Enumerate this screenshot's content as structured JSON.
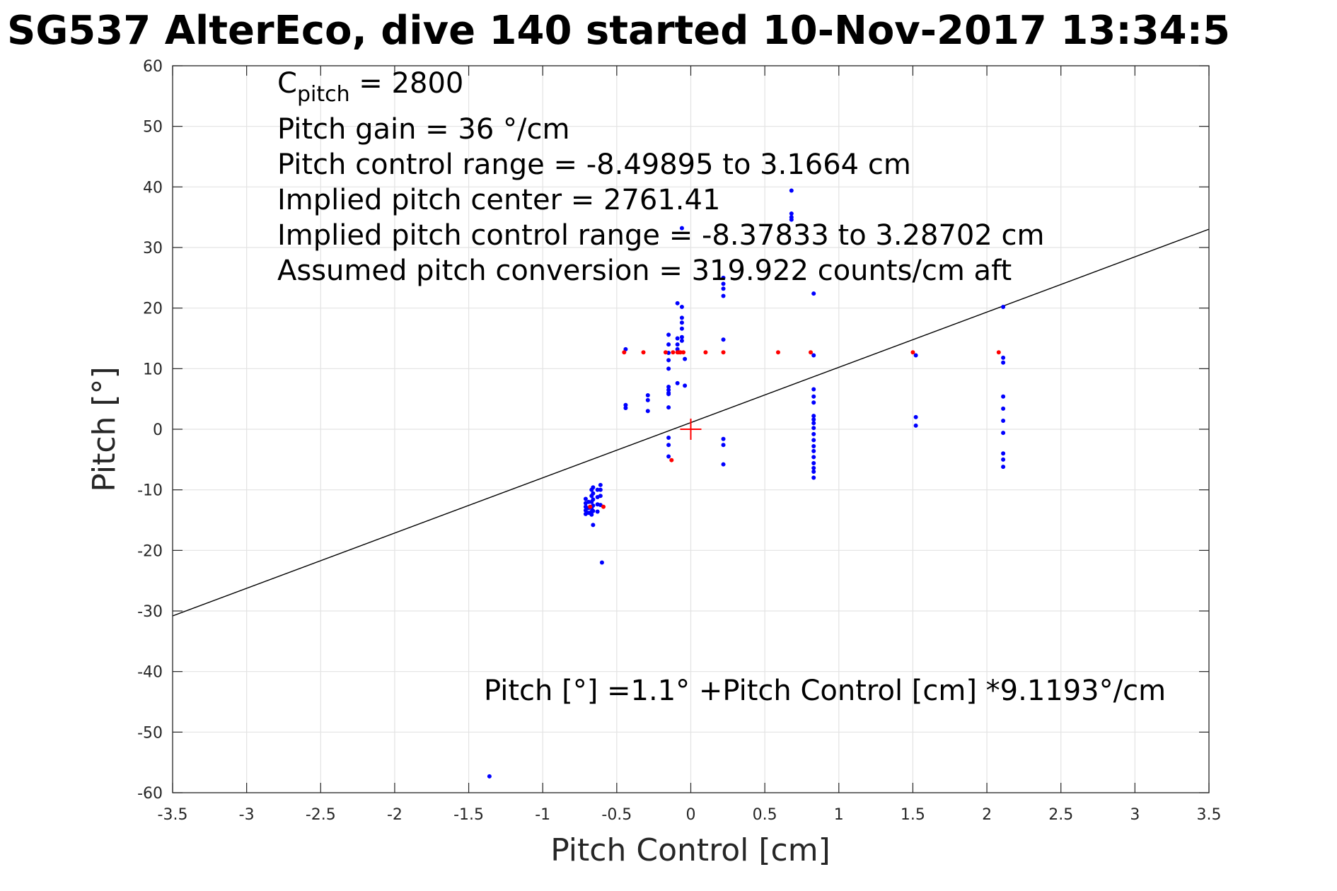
{
  "chart_data": {
    "type": "scatter",
    "title": "SG537 AlterEco, dive 140 started 10-Nov-2017 13:34:5",
    "xlabel": "Pitch Control [cm]",
    "ylabel": "Pitch [°]",
    "xlim": [
      -3.5,
      3.5
    ],
    "ylim": [
      -60,
      60
    ],
    "xticks": [
      -3.5,
      -3,
      -2.5,
      -2,
      -1.5,
      -1,
      -0.5,
      0,
      0.5,
      1,
      1.5,
      2,
      2.5,
      3,
      3.5
    ],
    "xtick_labels": [
      "-3.5",
      "-3",
      "-2.5",
      "-2",
      "-1.5",
      "-1",
      "-0.5",
      "0",
      "0.5",
      "1",
      "1.5",
      "2",
      "2.5",
      "3",
      "3.5"
    ],
    "yticks": [
      -60,
      -50,
      -40,
      -30,
      -20,
      -10,
      0,
      10,
      20,
      30,
      40,
      50,
      60
    ],
    "ytick_labels": [
      "-60",
      "-50",
      "-40",
      "-30",
      "-20",
      "-10",
      "0",
      "10",
      "20",
      "30",
      "40",
      "50",
      "60"
    ],
    "grid": true,
    "annotations": {
      "c_pitch_main": "C",
      "c_pitch_sub": "pitch",
      "c_pitch_value": " = 2800",
      "pitch_gain": "Pitch gain = 36 °/cm",
      "pitch_control_range": "Pitch control range = -8.49895 to 3.1664 cm",
      "implied_center": "Implied pitch center = 2761.41",
      "implied_range": "Implied pitch control range = -8.37833 to 3.28702 cm",
      "assumed_conversion": "Assumed pitch conversion = 319.922 counts/cm aft",
      "fit_equation": "Pitch [°] =1.1° +Pitch Control [cm] *9.1193°/cm"
    },
    "fit_line": {
      "intercept": 1.1,
      "slope": 9.1193,
      "color": "#000000"
    },
    "center_marker": {
      "x": 0,
      "y": 0,
      "color": "#ff0000"
    },
    "series": [
      {
        "color": "#0000ff",
        "points": [
          [
            -0.71,
            -11.5
          ],
          [
            -0.71,
            -12.2
          ],
          [
            -0.71,
            -12.8
          ],
          [
            -0.71,
            -13.4
          ],
          [
            -0.71,
            -14.0
          ],
          [
            -0.69,
            -12.0
          ],
          [
            -0.69,
            -13.0
          ],
          [
            -0.69,
            -13.8
          ],
          [
            -0.67,
            -10.0
          ],
          [
            -0.67,
            -11.0
          ],
          [
            -0.67,
            -12.0
          ],
          [
            -0.67,
            -13.0
          ],
          [
            -0.67,
            -13.6
          ],
          [
            -0.67,
            -14.1
          ],
          [
            -0.66,
            -9.6
          ],
          [
            -0.66,
            -10.6
          ],
          [
            -0.66,
            -11.6
          ],
          [
            -0.66,
            -12.6
          ],
          [
            -0.66,
            -13.5
          ],
          [
            -0.66,
            -15.8
          ],
          [
            -0.63,
            -10.0
          ],
          [
            -0.63,
            -11.2
          ],
          [
            -0.63,
            -12.4
          ],
          [
            -0.63,
            -13.6
          ],
          [
            -0.61,
            -9.2
          ],
          [
            -0.61,
            -10.0
          ],
          [
            -0.61,
            -11.0
          ],
          [
            -0.61,
            -12.5
          ],
          [
            -0.6,
            -22.0
          ],
          [
            -1.36,
            -57.3
          ],
          [
            -0.44,
            13.2
          ],
          [
            -0.44,
            4.0
          ],
          [
            -0.44,
            3.5
          ],
          [
            -0.29,
            5.6
          ],
          [
            -0.29,
            4.8
          ],
          [
            -0.29,
            3.0
          ],
          [
            -0.15,
            15.6
          ],
          [
            -0.15,
            14.0
          ],
          [
            -0.15,
            12.6
          ],
          [
            -0.15,
            11.4
          ],
          [
            -0.15,
            10.0
          ],
          [
            -0.15,
            7.0
          ],
          [
            -0.15,
            6.5
          ],
          [
            -0.15,
            6.0
          ],
          [
            -0.15,
            5.8
          ],
          [
            -0.15,
            3.6
          ],
          [
            -0.15,
            -1.4
          ],
          [
            -0.15,
            -2.6
          ],
          [
            -0.15,
            -4.5
          ],
          [
            -0.09,
            20.8
          ],
          [
            -0.09,
            15.0
          ],
          [
            -0.09,
            14.0
          ],
          [
            -0.09,
            13.2
          ],
          [
            -0.09,
            7.6
          ],
          [
            -0.06,
            20.2
          ],
          [
            -0.06,
            18.4
          ],
          [
            -0.06,
            17.6
          ],
          [
            -0.06,
            16.6
          ],
          [
            -0.06,
            15.2
          ],
          [
            -0.06,
            14.6
          ],
          [
            -0.04,
            11.6
          ],
          [
            -0.04,
            7.2
          ],
          [
            -0.06,
            33.2
          ],
          [
            0.22,
            25.0
          ],
          [
            0.22,
            24.0
          ],
          [
            0.22,
            23.2
          ],
          [
            0.22,
            22.0
          ],
          [
            0.22,
            14.8
          ],
          [
            0.22,
            -1.6
          ],
          [
            0.22,
            -2.6
          ],
          [
            0.22,
            -5.8
          ],
          [
            0.68,
            39.4
          ],
          [
            0.68,
            35.6
          ],
          [
            0.68,
            35.0
          ],
          [
            0.68,
            34.6
          ],
          [
            0.83,
            22.4
          ],
          [
            0.83,
            12.2
          ],
          [
            0.83,
            6.6
          ],
          [
            0.83,
            5.4
          ],
          [
            0.83,
            4.4
          ],
          [
            0.83,
            2.2
          ],
          [
            0.83,
            1.6
          ],
          [
            0.83,
            1.0
          ],
          [
            0.83,
            0.2
          ],
          [
            0.83,
            -0.8
          ],
          [
            0.83,
            -1.8
          ],
          [
            0.83,
            -2.8
          ],
          [
            0.83,
            -3.6
          ],
          [
            0.83,
            -4.6
          ],
          [
            0.83,
            -5.6
          ],
          [
            0.83,
            -6.4
          ],
          [
            0.83,
            -7.0
          ],
          [
            0.83,
            -8.0
          ],
          [
            1.52,
            12.2
          ],
          [
            1.52,
            2.0
          ],
          [
            1.52,
            0.6
          ],
          [
            2.11,
            20.2
          ],
          [
            2.11,
            11.8
          ],
          [
            2.11,
            11.0
          ],
          [
            2.11,
            5.4
          ],
          [
            2.11,
            3.4
          ],
          [
            2.11,
            1.4
          ],
          [
            2.11,
            -0.6
          ],
          [
            2.11,
            -4.0
          ],
          [
            2.11,
            -5.0
          ],
          [
            2.11,
            -6.2
          ]
        ]
      },
      {
        "color": "#ff0000",
        "points": [
          [
            -0.45,
            12.7
          ],
          [
            -0.32,
            12.7
          ],
          [
            -0.17,
            12.7
          ],
          [
            -0.12,
            12.7
          ],
          [
            -0.09,
            12.7
          ],
          [
            -0.08,
            12.7
          ],
          [
            -0.07,
            12.7
          ],
          [
            -0.05,
            12.7
          ],
          [
            0.1,
            12.7
          ],
          [
            0.22,
            12.7
          ],
          [
            0.59,
            12.7
          ],
          [
            0.81,
            12.7
          ],
          [
            1.5,
            12.7
          ],
          [
            2.08,
            12.7
          ],
          [
            -0.13,
            -5.1
          ],
          [
            -0.68,
            -12.8
          ],
          [
            -0.59,
            -12.8
          ]
        ]
      }
    ]
  }
}
